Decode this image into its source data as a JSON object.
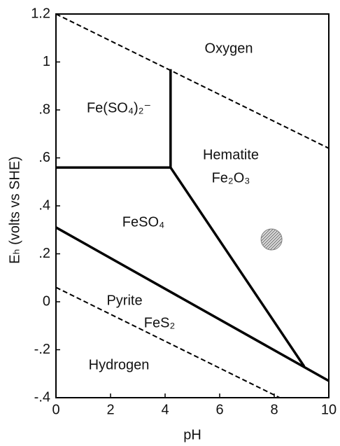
{
  "chart_data": {
    "type": "line",
    "xlabel": "pH",
    "ylabel": "Eₕ (volts vs SHE)",
    "xlim": [
      0,
      10
    ],
    "ylim": [
      -0.4,
      1.2
    ],
    "xticks": [
      0,
      2,
      4,
      6,
      8,
      10
    ],
    "yticks": [
      1.2,
      1,
      {
        "value": 0.8,
        "label": ".8"
      },
      {
        "value": 0.6,
        "label": ".6"
      },
      {
        "value": 0.4,
        "label": ".4"
      },
      {
        "value": 0.2,
        "label": ".2"
      },
      0,
      {
        "value": -0.2,
        "label": "-.2"
      },
      {
        "value": -0.4,
        "label": "-.4"
      }
    ],
    "grid": false,
    "series": [
      {
        "x": [
          0,
          10
        ],
        "values": [
          1.2,
          0.64
        ],
        "color": "#000000",
        "style": "dashed"
      },
      {
        "x": [
          0,
          8.2
        ],
        "values": [
          0.06,
          -0.4
        ],
        "color": "#000000",
        "style": "dashed"
      },
      {
        "x": [
          0,
          4.2,
          9.1
        ],
        "values": [
          0.56,
          0.56,
          -0.27
        ],
        "color": "#000000",
        "style": "solid"
      },
      {
        "x": [
          4.2,
          4.2
        ],
        "values": [
          0.56,
          0.97
        ],
        "color": "#000000",
        "style": "solid"
      },
      {
        "x": [
          0,
          10
        ],
        "values": [
          0.31,
          -0.33
        ],
        "color": "#000000",
        "style": "solid"
      }
    ],
    "points": {
      "x": [
        7.9
      ],
      "values": [
        0.26
      ],
      "color": "#808080"
    },
    "annotations": [
      "Oxygen",
      "Fe(SO₄)₂⁻",
      "Hematite",
      "Fe₂O₃",
      "FeSO₄",
      "Pyrite",
      "FeS₂",
      "Hydrogen"
    ]
  }
}
